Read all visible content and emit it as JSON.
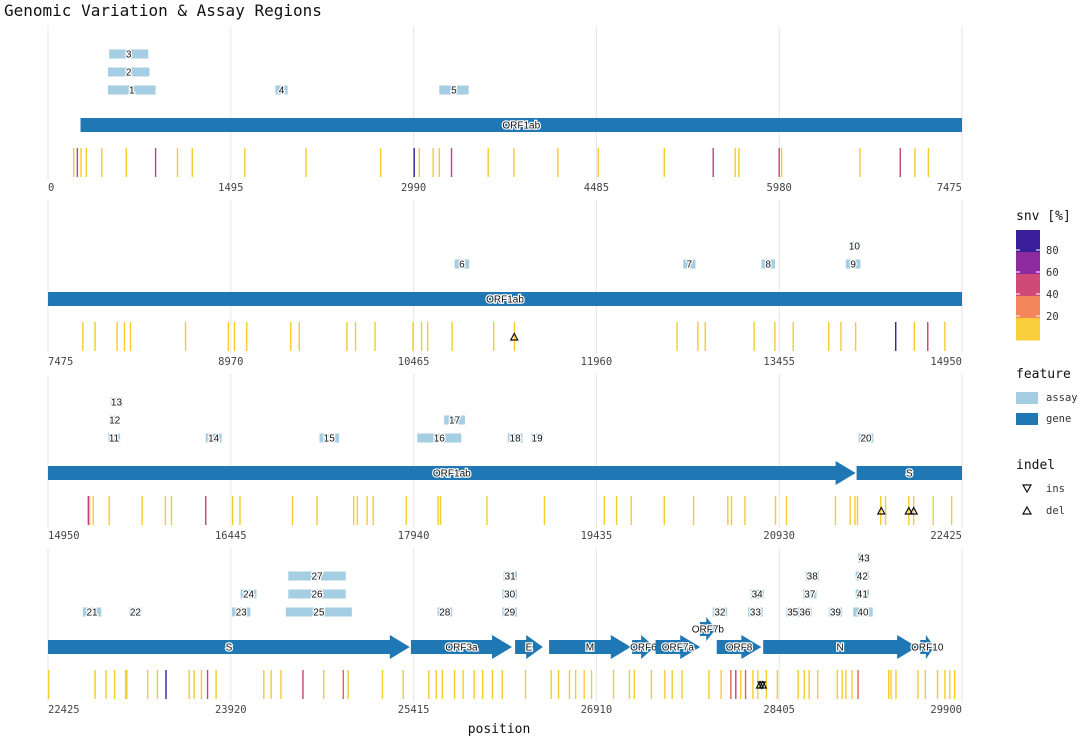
{
  "chart_data": {
    "type": "genome-track",
    "title": "Genomic Variation & Assay Regions",
    "xlabel": "position",
    "panels": [
      {
        "xlim": [
          0,
          7475
        ],
        "ticks": [
          "0",
          "1495",
          "2990",
          "4485",
          "5980",
          "7475"
        ]
      },
      {
        "xlim": [
          7475,
          14950
        ],
        "ticks": [
          "7475",
          "8970",
          "10465",
          "11960",
          "13455",
          "14950"
        ]
      },
      {
        "xlim": [
          14950,
          22425
        ],
        "ticks": [
          "14950",
          "16445",
          "17940",
          "19435",
          "20930",
          "22425"
        ]
      },
      {
        "xlim": [
          22425,
          29900
        ],
        "ticks": [
          "22425",
          "23920",
          "25415",
          "26910",
          "28405",
          "29900"
        ]
      }
    ],
    "genes": [
      {
        "name": "ORF1ab",
        "start": 266,
        "end": 21555
      },
      {
        "name": "S",
        "start": 21563,
        "end": 25384
      },
      {
        "name": "ORF3a",
        "start": 25393,
        "end": 26220
      },
      {
        "name": "E",
        "start": 26245,
        "end": 26472
      },
      {
        "name": "M",
        "start": 26523,
        "end": 27191
      },
      {
        "name": "ORF6",
        "start": 27202,
        "end": 27387
      },
      {
        "name": "ORF7a",
        "start": 27394,
        "end": 27759
      },
      {
        "name": "ORF7b",
        "start": 27756,
        "end": 27887
      },
      {
        "name": "ORF8",
        "start": 27894,
        "end": 28259
      },
      {
        "name": "N",
        "start": 28274,
        "end": 29533
      },
      {
        "name": "ORF10",
        "start": 29558,
        "end": 29674
      }
    ],
    "assays": [
      {
        "id": "1",
        "start": 490,
        "end": 880,
        "row": 0
      },
      {
        "id": "2",
        "start": 490,
        "end": 830,
        "row": 1
      },
      {
        "id": "3",
        "start": 500,
        "end": 820,
        "row": 2
      },
      {
        "id": "4",
        "start": 1860,
        "end": 1960,
        "row": 0
      },
      {
        "id": "5",
        "start": 3200,
        "end": 3440,
        "row": 0
      },
      {
        "id": "6",
        "start": 10800,
        "end": 10920,
        "row": 0
      },
      {
        "id": "7",
        "start": 12670,
        "end": 12770,
        "row": 0
      },
      {
        "id": "8",
        "start": 13310,
        "end": 13420,
        "row": 0
      },
      {
        "id": "9",
        "start": 14000,
        "end": 14120,
        "row": 0
      },
      {
        "id": "10",
        "start": 14030,
        "end": 14110,
        "row": 1
      },
      {
        "id": "11",
        "start": 15440,
        "end": 15540,
        "row": 0
      },
      {
        "id": "12",
        "start": 15450,
        "end": 15540,
        "row": 1
      },
      {
        "id": "13",
        "start": 15460,
        "end": 15560,
        "row": 2
      },
      {
        "id": "14",
        "start": 16240,
        "end": 16370,
        "row": 0
      },
      {
        "id": "15",
        "start": 17170,
        "end": 17330,
        "row": 0
      },
      {
        "id": "16",
        "start": 17970,
        "end": 18330,
        "row": 0
      },
      {
        "id": "17",
        "start": 18190,
        "end": 18360,
        "row": 1
      },
      {
        "id": "18",
        "start": 18710,
        "end": 18830,
        "row": 0
      },
      {
        "id": "19",
        "start": 18900,
        "end": 19000,
        "row": 0
      },
      {
        "id": "20",
        "start": 21580,
        "end": 21700,
        "row": 0
      },
      {
        "id": "21",
        "start": 22710,
        "end": 22860,
        "row": 0
      },
      {
        "id": "22",
        "start": 23090,
        "end": 23190,
        "row": 0
      },
      {
        "id": "23",
        "start": 23930,
        "end": 24080,
        "row": 0
      },
      {
        "id": "24",
        "start": 24000,
        "end": 24130,
        "row": 1
      },
      {
        "id": "25",
        "start": 24370,
        "end": 24910,
        "row": 0
      },
      {
        "id": "26",
        "start": 24390,
        "end": 24860,
        "row": 1
      },
      {
        "id": "27",
        "start": 24390,
        "end": 24860,
        "row": 2
      },
      {
        "id": "28",
        "start": 25610,
        "end": 25730,
        "row": 0
      },
      {
        "id": "29",
        "start": 26140,
        "end": 26260,
        "row": 0
      },
      {
        "id": "30",
        "start": 26140,
        "end": 26260,
        "row": 1
      },
      {
        "id": "31",
        "start": 26150,
        "end": 26260,
        "row": 2
      },
      {
        "id": "32",
        "start": 27860,
        "end": 27980,
        "row": 0
      },
      {
        "id": "33",
        "start": 28150,
        "end": 28270,
        "row": 0
      },
      {
        "id": "34",
        "start": 28170,
        "end": 28280,
        "row": 1
      },
      {
        "id": "35",
        "start": 28460,
        "end": 28570,
        "row": 0
      },
      {
        "id": "36",
        "start": 28560,
        "end": 28670,
        "row": 0
      },
      {
        "id": "37",
        "start": 28600,
        "end": 28710,
        "row": 1
      },
      {
        "id": "38",
        "start": 28620,
        "end": 28730,
        "row": 2
      },
      {
        "id": "39",
        "start": 28810,
        "end": 28920,
        "row": 0
      },
      {
        "id": "40",
        "start": 29010,
        "end": 29170,
        "row": 0
      },
      {
        "id": "41",
        "start": 29030,
        "end": 29140,
        "row": 1
      },
      {
        "id": "42",
        "start": 29030,
        "end": 29140,
        "row": 2
      },
      {
        "id": "43",
        "start": 29050,
        "end": 29150,
        "row": 3
      }
    ],
    "snvs": [
      {
        "pos": 210,
        "pct": 25
      },
      {
        "pos": 240,
        "pct": 60
      },
      {
        "pos": 270,
        "pct": 15
      },
      {
        "pos": 313,
        "pct": 15
      },
      {
        "pos": 440,
        "pct": 15
      },
      {
        "pos": 640,
        "pct": 20
      },
      {
        "pos": 880,
        "pct": 55
      },
      {
        "pos": 1059,
        "pct": 20
      },
      {
        "pos": 1180,
        "pct": 15
      },
      {
        "pos": 1610,
        "pct": 15
      },
      {
        "pos": 2110,
        "pct": 15
      },
      {
        "pos": 2720,
        "pct": 15
      },
      {
        "pos": 2995,
        "pct": 85
      },
      {
        "pos": 3037,
        "pct": 15
      },
      {
        "pos": 3150,
        "pct": 20
      },
      {
        "pos": 3200,
        "pct": 15
      },
      {
        "pos": 3300,
        "pct": 55
      },
      {
        "pos": 3600,
        "pct": 15
      },
      {
        "pos": 3810,
        "pct": 15
      },
      {
        "pos": 4170,
        "pct": 15
      },
      {
        "pos": 4500,
        "pct": 15
      },
      {
        "pos": 5040,
        "pct": 15
      },
      {
        "pos": 5440,
        "pct": 55
      },
      {
        "pos": 5620,
        "pct": 15
      },
      {
        "pos": 5650,
        "pct": 15
      },
      {
        "pos": 5980,
        "pct": 55
      },
      {
        "pos": 6000,
        "pct": 15
      },
      {
        "pos": 6640,
        "pct": 15
      },
      {
        "pos": 6970,
        "pct": 55
      },
      {
        "pos": 7090,
        "pct": 15
      },
      {
        "pos": 7200,
        "pct": 15
      },
      {
        "pos": 7760,
        "pct": 15
      },
      {
        "pos": 7860,
        "pct": 15
      },
      {
        "pos": 8040,
        "pct": 15
      },
      {
        "pos": 8100,
        "pct": 15
      },
      {
        "pos": 8150,
        "pct": 15
      },
      {
        "pos": 8600,
        "pct": 15
      },
      {
        "pos": 8950,
        "pct": 15
      },
      {
        "pos": 9000,
        "pct": 15
      },
      {
        "pos": 9100,
        "pct": 15
      },
      {
        "pos": 9460,
        "pct": 15
      },
      {
        "pos": 9530,
        "pct": 15
      },
      {
        "pos": 9920,
        "pct": 15
      },
      {
        "pos": 9990,
        "pct": 15
      },
      {
        "pos": 10150,
        "pct": 15
      },
      {
        "pos": 10460,
        "pct": 15
      },
      {
        "pos": 10530,
        "pct": 15
      },
      {
        "pos": 10580,
        "pct": 15
      },
      {
        "pos": 10780,
        "pct": 15
      },
      {
        "pos": 11120,
        "pct": 15
      },
      {
        "pos": 11290,
        "pct": 15
      },
      {
        "pos": 12620,
        "pct": 15
      },
      {
        "pos": 12790,
        "pct": 15
      },
      {
        "pos": 12850,
        "pct": 15
      },
      {
        "pos": 13250,
        "pct": 15
      },
      {
        "pos": 13420,
        "pct": 15
      },
      {
        "pos": 13570,
        "pct": 15
      },
      {
        "pos": 13860,
        "pct": 15
      },
      {
        "pos": 13960,
        "pct": 15
      },
      {
        "pos": 14080,
        "pct": 15
      },
      {
        "pos": 14408,
        "pct": 90
      },
      {
        "pos": 14560,
        "pct": 15
      },
      {
        "pos": 14670,
        "pct": 55
      },
      {
        "pos": 14810,
        "pct": 15
      },
      {
        "pos": 15320,
        "pct": 15
      },
      {
        "pos": 15290,
        "pct": 15
      },
      {
        "pos": 15280,
        "pct": 55
      },
      {
        "pos": 15450,
        "pct": 15
      },
      {
        "pos": 15720,
        "pct": 15
      },
      {
        "pos": 15910,
        "pct": 15
      },
      {
        "pos": 15960,
        "pct": 15
      },
      {
        "pos": 16240,
        "pct": 55
      },
      {
        "pos": 16460,
        "pct": 15
      },
      {
        "pos": 16520,
        "pct": 15
      },
      {
        "pos": 16950,
        "pct": 15
      },
      {
        "pos": 17150,
        "pct": 15
      },
      {
        "pos": 17450,
        "pct": 15
      },
      {
        "pos": 17480,
        "pct": 15
      },
      {
        "pos": 17560,
        "pct": 15
      },
      {
        "pos": 17610,
        "pct": 15
      },
      {
        "pos": 17880,
        "pct": 15
      },
      {
        "pos": 18140,
        "pct": 15
      },
      {
        "pos": 18160,
        "pct": 15
      },
      {
        "pos": 18540,
        "pct": 15
      },
      {
        "pos": 19010,
        "pct": 15
      },
      {
        "pos": 19500,
        "pct": 15
      },
      {
        "pos": 19600,
        "pct": 15
      },
      {
        "pos": 19720,
        "pct": 15
      },
      {
        "pos": 19990,
        "pct": 15
      },
      {
        "pos": 20230,
        "pct": 15
      },
      {
        "pos": 20510,
        "pct": 15
      },
      {
        "pos": 20540,
        "pct": 15
      },
      {
        "pos": 20650,
        "pct": 15
      },
      {
        "pos": 20900,
        "pct": 15
      },
      {
        "pos": 20990,
        "pct": 15
      },
      {
        "pos": 21390,
        "pct": 15
      },
      {
        "pos": 21510,
        "pct": 15
      },
      {
        "pos": 21550,
        "pct": 15
      },
      {
        "pos": 21570,
        "pct": 15
      },
      {
        "pos": 21760,
        "pct": 15
      },
      {
        "pos": 21800,
        "pct": 15
      },
      {
        "pos": 21990,
        "pct": 15
      },
      {
        "pos": 22030,
        "pct": 15
      },
      {
        "pos": 22190,
        "pct": 15
      },
      {
        "pos": 22340,
        "pct": 15
      },
      {
        "pos": 22430,
        "pct": 15
      },
      {
        "pos": 22810,
        "pct": 15
      },
      {
        "pos": 22900,
        "pct": 15
      },
      {
        "pos": 22970,
        "pct": 15
      },
      {
        "pos": 23060,
        "pct": 15
      },
      {
        "pos": 23070,
        "pct": 15
      },
      {
        "pos": 23240,
        "pct": 15
      },
      {
        "pos": 23320,
        "pct": 15
      },
      {
        "pos": 23390,
        "pct": 85
      },
      {
        "pos": 23580,
        "pct": 15
      },
      {
        "pos": 23620,
        "pct": 15
      },
      {
        "pos": 23680,
        "pct": 15
      },
      {
        "pos": 23730,
        "pct": 55
      },
      {
        "pos": 23800,
        "pct": 15
      },
      {
        "pos": 24190,
        "pct": 15
      },
      {
        "pos": 24250,
        "pct": 15
      },
      {
        "pos": 24330,
        "pct": 15
      },
      {
        "pos": 24510,
        "pct": 55
      },
      {
        "pos": 24680,
        "pct": 15
      },
      {
        "pos": 24840,
        "pct": 40
      },
      {
        "pos": 24880,
        "pct": 15
      },
      {
        "pos": 25160,
        "pct": 15
      },
      {
        "pos": 25330,
        "pct": 15
      },
      {
        "pos": 25540,
        "pct": 15
      },
      {
        "pos": 25600,
        "pct": 15
      },
      {
        "pos": 25650,
        "pct": 15
      },
      {
        "pos": 25750,
        "pct": 15
      },
      {
        "pos": 25820,
        "pct": 15
      },
      {
        "pos": 25910,
        "pct": 15
      },
      {
        "pos": 25980,
        "pct": 15
      },
      {
        "pos": 26060,
        "pct": 15
      },
      {
        "pos": 26140,
        "pct": 15
      },
      {
        "pos": 26330,
        "pct": 15
      },
      {
        "pos": 26540,
        "pct": 15
      },
      {
        "pos": 26600,
        "pct": 15
      },
      {
        "pos": 26690,
        "pct": 15
      },
      {
        "pos": 26740,
        "pct": 15
      },
      {
        "pos": 26810,
        "pct": 15
      },
      {
        "pos": 26870,
        "pct": 15
      },
      {
        "pos": 27050,
        "pct": 15
      },
      {
        "pos": 27180,
        "pct": 15
      },
      {
        "pos": 27220,
        "pct": 15
      },
      {
        "pos": 27360,
        "pct": 15
      },
      {
        "pos": 27470,
        "pct": 15
      },
      {
        "pos": 27530,
        "pct": 15
      },
      {
        "pos": 27610,
        "pct": 15
      },
      {
        "pos": 27830,
        "pct": 15
      },
      {
        "pos": 27930,
        "pct": 15
      },
      {
        "pos": 28010,
        "pct": 40
      },
      {
        "pos": 28050,
        "pct": 55
      },
      {
        "pos": 28090,
        "pct": 15
      },
      {
        "pos": 28130,
        "pct": 40
      },
      {
        "pos": 28190,
        "pct": 15
      },
      {
        "pos": 28230,
        "pct": 15
      },
      {
        "pos": 28300,
        "pct": 15
      },
      {
        "pos": 28390,
        "pct": 15
      },
      {
        "pos": 28560,
        "pct": 15
      },
      {
        "pos": 28610,
        "pct": 15
      },
      {
        "pos": 28650,
        "pct": 15
      },
      {
        "pos": 28720,
        "pct": 15
      },
      {
        "pos": 28880,
        "pct": 15
      },
      {
        "pos": 28920,
        "pct": 15
      },
      {
        "pos": 28950,
        "pct": 15
      },
      {
        "pos": 29000,
        "pct": 15
      },
      {
        "pos": 29050,
        "pct": 40
      },
      {
        "pos": 29300,
        "pct": 15
      },
      {
        "pos": 29320,
        "pct": 15
      },
      {
        "pos": 29360,
        "pct": 15
      },
      {
        "pos": 29540,
        "pct": 15
      },
      {
        "pos": 29600,
        "pct": 15
      },
      {
        "pos": 29700,
        "pct": 15
      },
      {
        "pos": 29760,
        "pct": 15
      },
      {
        "pos": 29800,
        "pct": 15
      },
      {
        "pos": 29840,
        "pct": 15
      }
    ],
    "indels": [
      {
        "pos": 11288,
        "type": "del"
      },
      {
        "pos": 21765,
        "type": "del"
      },
      {
        "pos": 21990,
        "type": "del"
      },
      {
        "pos": 22030,
        "type": "del"
      },
      {
        "pos": 28248,
        "type": "del"
      },
      {
        "pos": 28271,
        "type": "del"
      },
      {
        "pos": 28262,
        "type": "ins"
      }
    ],
    "legend": {
      "snv": {
        "title": "snv [%]",
        "ticks": [
          "80",
          "60",
          "40",
          "20"
        ],
        "colors": [
          "#3b1f9a",
          "#8e2aa0",
          "#cf4a77",
          "#f3865a",
          "#f8cf3b"
        ]
      },
      "feature": {
        "title": "feature",
        "items": [
          {
            "label": "assay",
            "color": "#a6cee3"
          },
          {
            "label": "gene",
            "color": "#1f78b4"
          }
        ]
      },
      "indel": {
        "title": "indel",
        "items": [
          {
            "label": "ins",
            "shape": "triangle-down"
          },
          {
            "label": "del",
            "shape": "triangle-up"
          }
        ]
      }
    }
  }
}
